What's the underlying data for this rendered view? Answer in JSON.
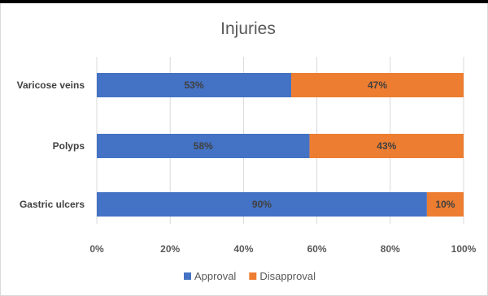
{
  "chart_data": {
    "type": "bar",
    "orientation": "horizontal",
    "stacked": "percent",
    "title": "Injuries",
    "categories": [
      "Varicose veins",
      "Polyps",
      "Gastric ulcers"
    ],
    "series": [
      {
        "name": "Approval",
        "values": [
          53,
          58,
          90
        ],
        "labels": [
          "53%",
          "58%",
          "90%"
        ],
        "color": "#4472C4"
      },
      {
        "name": "Disapproval",
        "values": [
          47,
          43,
          10
        ],
        "labels": [
          "47%",
          "43%",
          "10%"
        ],
        "color": "#ED7D31"
      }
    ],
    "xlim": [
      0,
      100
    ],
    "xticks": [
      "0%",
      "20%",
      "40%",
      "60%",
      "80%",
      "100%"
    ],
    "grid": true,
    "legend": "bottom"
  }
}
